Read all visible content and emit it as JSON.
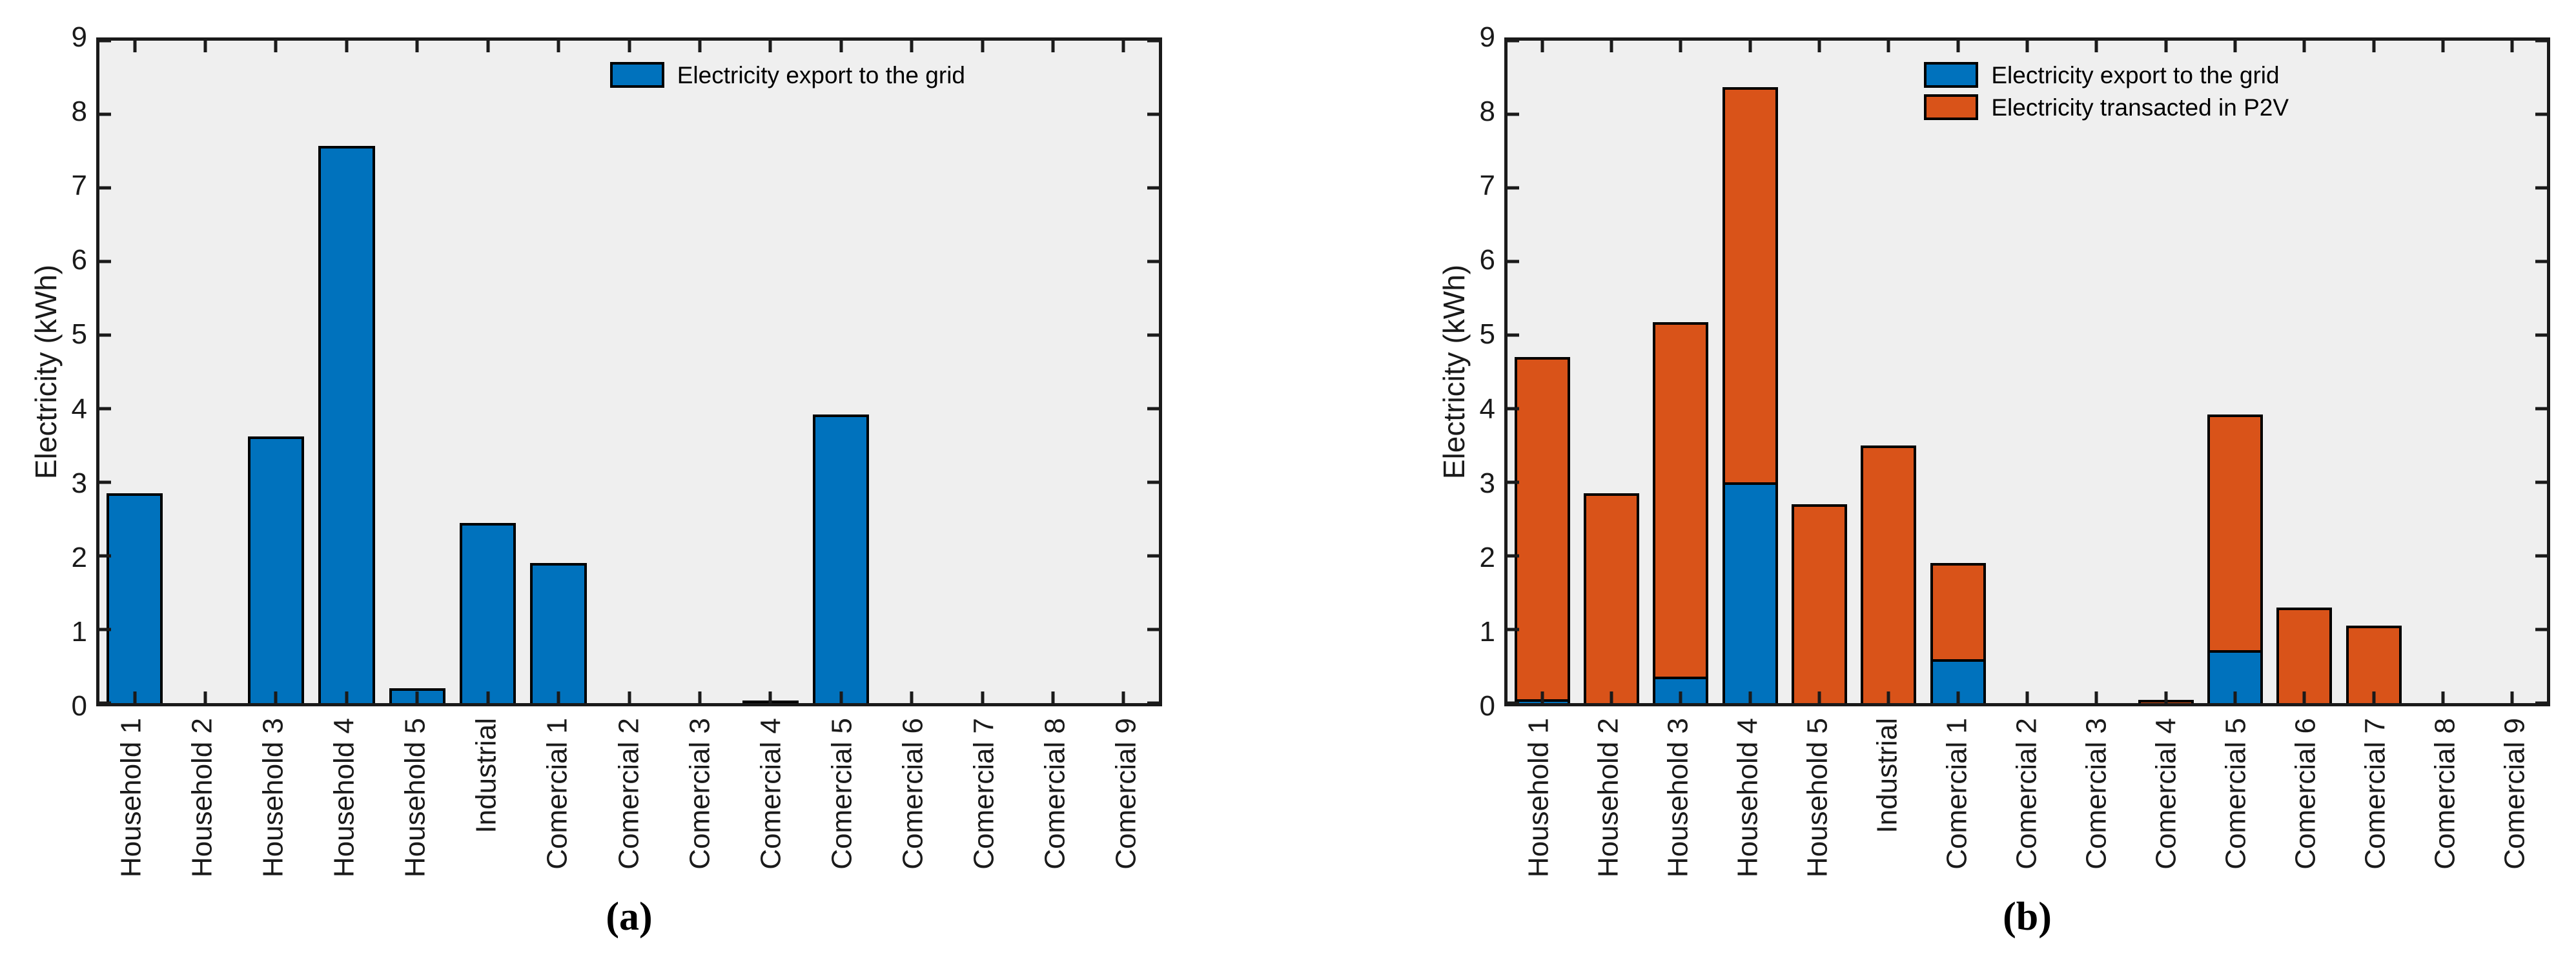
{
  "colors": {
    "export_blue": "#0072BD",
    "p2v_orange": "#D95319",
    "plot_background": "#EFEFEF",
    "axis_line": "#1A1A1A",
    "bar_edge": "#000000"
  },
  "chart_data": [
    {
      "type": "bar",
      "caption": "(a)",
      "title": "",
      "xlabel": "",
      "ylabel": "Electricity (kWh)",
      "ylim": [
        0,
        9
      ],
      "yticks": [
        0,
        1,
        2,
        3,
        4,
        5,
        6,
        7,
        8,
        9
      ],
      "grid": false,
      "legend_position": "northeast-inside",
      "categories": [
        "Household 1",
        "Household 2",
        "Household 3",
        "Household 4",
        "Household 5",
        "Industrial",
        "Comercial 1",
        "Comercial 2",
        "Comercial 3",
        "Comercial 4",
        "Comercial 5",
        "Comercial 6",
        "Comercial 7",
        "Comercial 8",
        "Comercial 9"
      ],
      "series": [
        {
          "name": "Electricity export to the grid",
          "color": "#0072BD",
          "values": [
            2.85,
            0,
            3.62,
            7.57,
            0.2,
            2.45,
            1.9,
            0,
            0,
            0.03,
            3.92,
            0,
            0,
            0,
            0
          ]
        }
      ]
    },
    {
      "type": "stacked-bar",
      "caption": "(b)",
      "title": "",
      "xlabel": "",
      "ylabel": "Electricity (kWh)",
      "ylim": [
        0,
        9
      ],
      "yticks": [
        0,
        1,
        2,
        3,
        4,
        5,
        6,
        7,
        8,
        9
      ],
      "grid": false,
      "legend_position": "northeast-inside",
      "categories": [
        "Household 1",
        "Household 2",
        "Household 3",
        "Household 4",
        "Household 5",
        "Industrial",
        "Comercial 1",
        "Comercial 2",
        "Comercial 3",
        "Comercial 4",
        "Comercial 5",
        "Comercial 6",
        "Comercial 7",
        "Comercial 8",
        "Comercial 9"
      ],
      "series": [
        {
          "name": "Electricity export to the grid",
          "color": "#0072BD",
          "values": [
            0.05,
            0,
            0.36,
            3.0,
            0,
            0,
            0.6,
            0,
            0,
            0,
            0.72,
            0,
            0,
            0,
            0
          ]
        },
        {
          "name": "Electricity transacted in P2V",
          "color": "#D95319",
          "values": [
            4.65,
            2.85,
            4.82,
            5.37,
            2.7,
            3.5,
            1.3,
            0,
            0,
            0.04,
            3.2,
            1.3,
            1.05,
            0,
            0
          ]
        }
      ]
    }
  ]
}
